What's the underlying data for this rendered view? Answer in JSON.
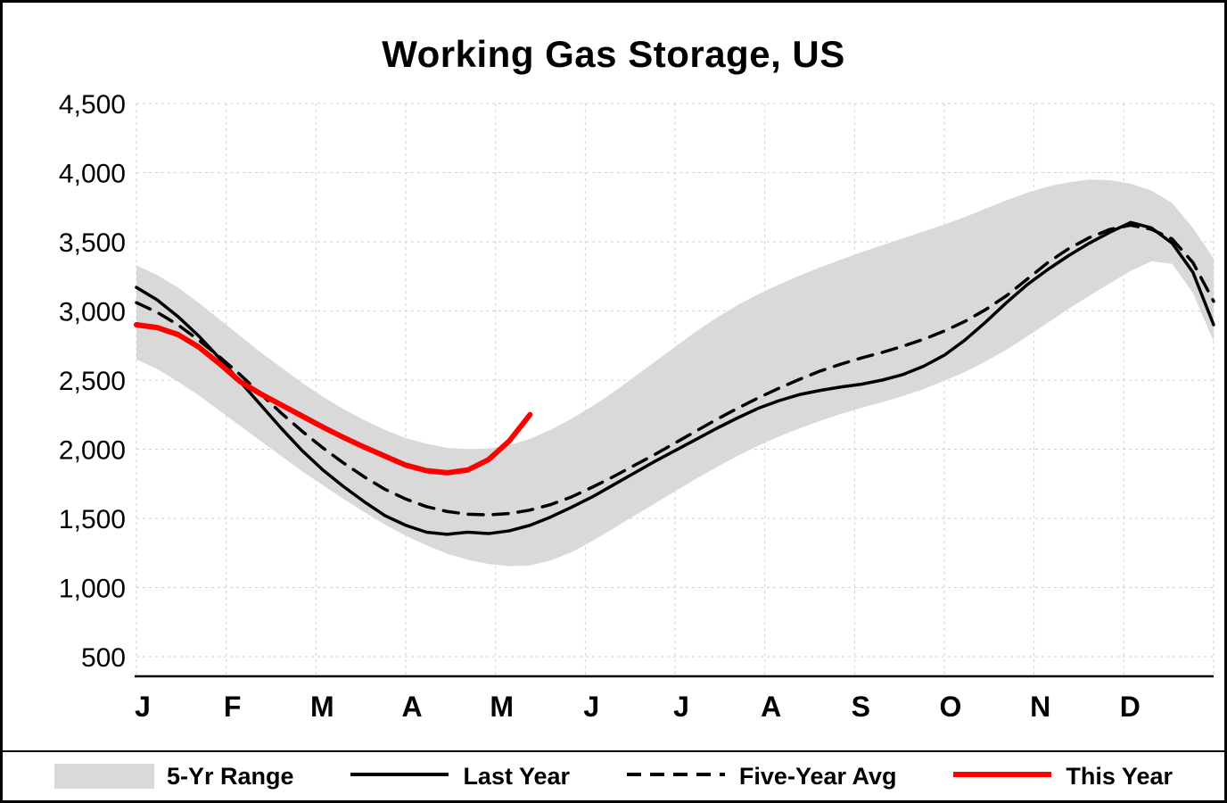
{
  "chart_data": {
    "type": "line",
    "title": "Working Gas Storage, US",
    "weeks": 52,
    "x_axis": {
      "tick_labels": [
        "J",
        "F",
        "M",
        "A",
        "M",
        "J",
        "J",
        "A",
        "S",
        "O",
        "N",
        "D"
      ]
    },
    "y_axis": {
      "min": 500,
      "max": 4500,
      "step": 500,
      "tick_labels": [
        "500",
        "1,000",
        "1,500",
        "2,000",
        "2,500",
        "3,000",
        "3,500",
        "4,000",
        "4,500"
      ]
    },
    "grid": true,
    "band": {
      "name": "5-Yr Range",
      "color": "#d9d9d9",
      "upper": [
        3330,
        3260,
        3170,
        3060,
        2940,
        2820,
        2700,
        2590,
        2480,
        2380,
        2290,
        2210,
        2140,
        2080,
        2040,
        2010,
        2000,
        2005,
        2030,
        2075,
        2140,
        2220,
        2310,
        2410,
        2520,
        2630,
        2740,
        2850,
        2950,
        3040,
        3120,
        3190,
        3255,
        3315,
        3370,
        3425,
        3475,
        3525,
        3575,
        3625,
        3680,
        3740,
        3800,
        3855,
        3900,
        3930,
        3950,
        3945,
        3920,
        3870,
        3780,
        3600,
        3380
      ],
      "lower": [
        2650,
        2580,
        2490,
        2390,
        2280,
        2170,
        2060,
        1950,
        1840,
        1740,
        1640,
        1545,
        1455,
        1375,
        1305,
        1245,
        1200,
        1170,
        1155,
        1160,
        1195,
        1255,
        1335,
        1425,
        1515,
        1605,
        1695,
        1785,
        1870,
        1950,
        2025,
        2090,
        2150,
        2205,
        2255,
        2300,
        2340,
        2385,
        2435,
        2495,
        2560,
        2635,
        2720,
        2815,
        2915,
        3015,
        3110,
        3200,
        3290,
        3360,
        3340,
        3130,
        2780
      ]
    },
    "series": [
      {
        "id": "last-year",
        "name": "Last Year",
        "color": "#000000",
        "width": 3.5,
        "dash": "",
        "values": [
          3170,
          3080,
          2960,
          2820,
          2660,
          2490,
          2320,
          2150,
          1990,
          1850,
          1730,
          1620,
          1520,
          1450,
          1400,
          1385,
          1400,
          1390,
          1410,
          1450,
          1510,
          1580,
          1655,
          1740,
          1825,
          1910,
          1990,
          2070,
          2150,
          2225,
          2295,
          2350,
          2395,
          2425,
          2450,
          2470,
          2500,
          2540,
          2600,
          2680,
          2790,
          2920,
          3060,
          3190,
          3300,
          3400,
          3490,
          3570,
          3640,
          3600,
          3490,
          3280,
          2900
        ]
      },
      {
        "id": "five-year-avg",
        "name": "Five-Year Avg",
        "color": "#000000",
        "width": 3.5,
        "dash": "17 11",
        "values": [
          3060,
          2990,
          2900,
          2790,
          2670,
          2540,
          2400,
          2260,
          2130,
          2010,
          1900,
          1800,
          1710,
          1640,
          1585,
          1550,
          1530,
          1525,
          1535,
          1560,
          1600,
          1655,
          1725,
          1800,
          1880,
          1960,
          2045,
          2130,
          2215,
          2295,
          2370,
          2440,
          2505,
          2565,
          2615,
          2660,
          2700,
          2745,
          2795,
          2855,
          2925,
          3010,
          3110,
          3230,
          3350,
          3450,
          3530,
          3590,
          3620,
          3590,
          3520,
          3350,
          3070
        ]
      },
      {
        "id": "this-year",
        "name": "This Year",
        "color": "#ff0000",
        "width": 6,
        "dash": "",
        "values": [
          2900,
          2880,
          2830,
          2740,
          2620,
          2490,
          2400,
          2320,
          2240,
          2160,
          2085,
          2015,
          1950,
          1885,
          1845,
          1830,
          1850,
          1925,
          2060,
          2250
        ]
      }
    ],
    "legend": {
      "position": "bottom",
      "items": [
        {
          "label": "5-Yr Range",
          "type": "band",
          "color": "#d9d9d9"
        },
        {
          "label": "Last Year",
          "type": "line",
          "color": "#000000",
          "thickness": 4,
          "dash": ""
        },
        {
          "label": "Five-Year Avg",
          "type": "line",
          "color": "#000000",
          "thickness": 4,
          "dash": "16 10"
        },
        {
          "label": "This Year",
          "type": "line",
          "color": "#ff0000",
          "thickness": 6,
          "dash": ""
        }
      ]
    }
  }
}
